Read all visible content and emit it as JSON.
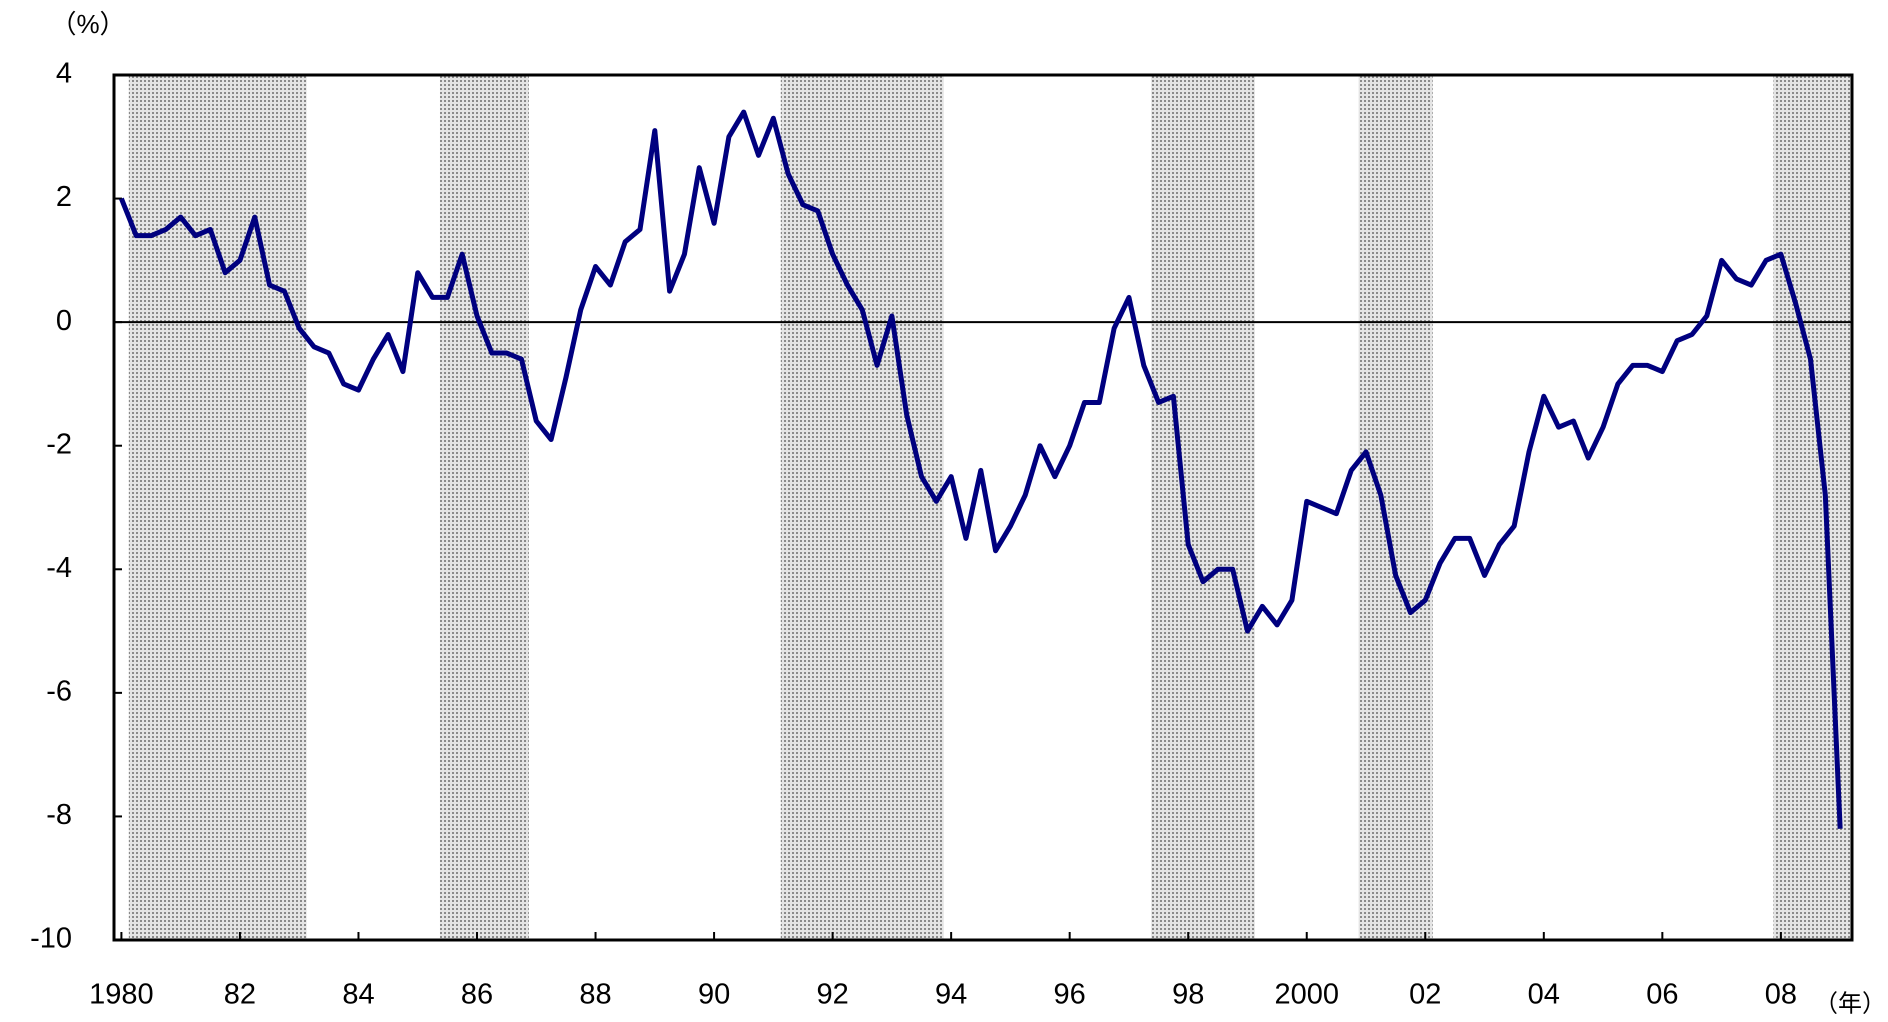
{
  "chart_data": {
    "type": "line",
    "y_label": "（%）",
    "x_label": "（年）",
    "xlim": [
      1979.875,
      2009.2
    ],
    "ylim": [
      -10,
      4
    ],
    "yticks": [
      -10,
      -8,
      -6,
      -4,
      -2,
      0,
      2,
      4
    ],
    "xticks": [
      1980,
      {
        "value": 1982,
        "label": "82"
      },
      {
        "value": 1984,
        "label": "84"
      },
      {
        "value": 1986,
        "label": "86"
      },
      {
        "value": 1988,
        "label": "88"
      },
      {
        "value": 1990,
        "label": "90"
      },
      {
        "value": 1992,
        "label": "92"
      },
      {
        "value": 1994,
        "label": "94"
      },
      {
        "value": 1996,
        "label": "96"
      },
      {
        "value": 1998,
        "label": "98"
      },
      2000,
      {
        "value": 2002,
        "label": "02"
      },
      {
        "value": 2004,
        "label": "04"
      },
      {
        "value": 2006,
        "label": "06"
      },
      {
        "value": 2008,
        "label": "08"
      }
    ],
    "shaded_periods": [
      [
        1980.125,
        1983.125
      ],
      [
        1985.375,
        1986.875
      ],
      [
        1991.125,
        1993.875
      ],
      [
        1997.375,
        1999.125
      ],
      [
        2000.875,
        2002.125
      ],
      [
        2007.875,
        2009.2
      ]
    ],
    "zero_line": true,
    "x": [
      1980,
      1980.25,
      1980.5,
      1980.75,
      1981,
      1981.25,
      1981.5,
      1981.75,
      1982,
      1982.25,
      1982.5,
      1982.75,
      1983,
      1983.25,
      1983.5,
      1983.75,
      1984,
      1984.25,
      1984.5,
      1984.75,
      1985,
      1985.25,
      1985.5,
      1985.75,
      1986,
      1986.25,
      1986.5,
      1986.75,
      1987,
      1987.25,
      1987.5,
      1987.75,
      1988,
      1988.25,
      1988.5,
      1988.75,
      1989,
      1989.25,
      1989.5,
      1989.75,
      1990,
      1990.25,
      1990.5,
      1990.75,
      1991,
      1991.25,
      1991.5,
      1991.75,
      1992,
      1992.25,
      1992.5,
      1992.75,
      1993,
      1993.25,
      1993.5,
      1993.75,
      1994,
      1994.25,
      1994.5,
      1994.75,
      1995,
      1995.25,
      1995.5,
      1995.75,
      1996,
      1996.25,
      1996.5,
      1996.75,
      1997,
      1997.25,
      1997.5,
      1997.75,
      1998,
      1998.25,
      1998.5,
      1998.75,
      1999,
      1999.25,
      1999.5,
      1999.75,
      2000,
      2000.25,
      2000.5,
      2000.75,
      2001,
      2001.25,
      2001.5,
      2001.75,
      2002,
      2002.25,
      2002.5,
      2002.75,
      2003,
      2003.25,
      2003.5,
      2003.75,
      2004,
      2004.25,
      2004.5,
      2004.75,
      2005,
      2005.25,
      2005.5,
      2005.75,
      2006,
      2006.25,
      2006.5,
      2006.75,
      2007,
      2007.25,
      2007.5,
      2007.75,
      2008,
      2008.25,
      2008.5,
      2008.75,
      2009
    ],
    "series": [
      {
        "color": "#00007f",
        "values": [
          2.0,
          1.4,
          1.4,
          1.5,
          1.7,
          1.4,
          1.5,
          0.8,
          1.0,
          1.7,
          0.6,
          0.5,
          -0.1,
          -0.4,
          -0.5,
          -1.0,
          -1.1,
          -0.6,
          -0.2,
          -0.8,
          0.8,
          0.4,
          0.4,
          1.1,
          0.1,
          -0.5,
          -0.5,
          -0.6,
          -1.6,
          -1.9,
          -0.9,
          0.2,
          0.9,
          0.6,
          1.3,
          1.5,
          3.1,
          0.5,
          1.1,
          2.5,
          1.6,
          3.0,
          3.4,
          2.7,
          3.3,
          2.4,
          1.9,
          1.8,
          1.1,
          0.6,
          0.2,
          -0.7,
          0.1,
          -1.5,
          -2.5,
          -2.9,
          -2.5,
          -3.5,
          -2.4,
          -3.7,
          -3.3,
          -2.8,
          -2.0,
          -2.5,
          -2.0,
          -1.3,
          -1.3,
          -0.1,
          0.4,
          -0.7,
          -1.3,
          -1.2,
          -3.6,
          -4.2,
          -4.0,
          -4.0,
          -5.0,
          -4.6,
          -4.9,
          -4.5,
          -2.9,
          -3.0,
          -3.1,
          -2.4,
          -2.1,
          -2.8,
          -4.1,
          -4.7,
          -4.5,
          -3.9,
          -3.5,
          -3.5,
          -4.1,
          -3.6,
          -3.3,
          -2.1,
          -1.2,
          -1.7,
          -1.6,
          -2.2,
          -1.7,
          -1.0,
          -0.7,
          -0.7,
          -0.8,
          -0.3,
          -0.2,
          0.1,
          1.0,
          0.7,
          0.6,
          1.0,
          1.1,
          0.3,
          -0.6,
          -2.8,
          -8.2
        ]
      }
    ]
  }
}
